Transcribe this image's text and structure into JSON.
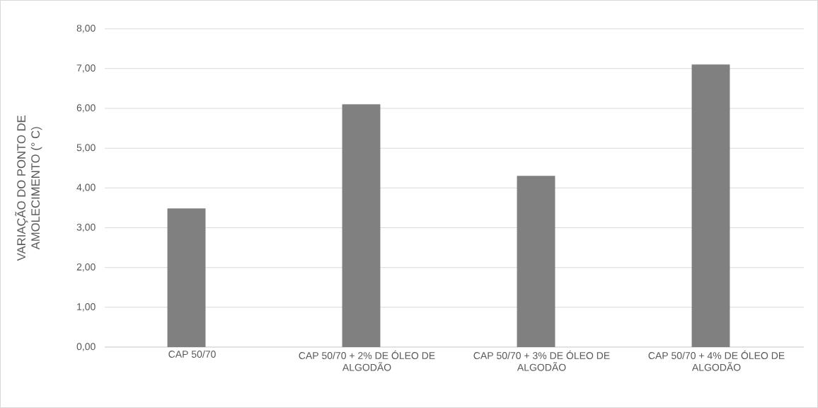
{
  "chart_data": {
    "type": "bar",
    "ylabel": "VARIAÇÃO DO PONTO DE AMOLECIMENTO (° C)",
    "categories": [
      "CAP 50/70",
      "CAP 50/70 + 2% DE ÓLEO DE ALGODÃO",
      "CAP 50/70 + 3% DE ÓLEO DE ALGODÃO",
      "CAP 50/70 + 4% DE ÓLEO DE ALGODÃO"
    ],
    "values": [
      3.48,
      6.1,
      4.3,
      7.1
    ],
    "color": "#808080",
    "ylim": [
      0,
      8
    ],
    "yticks": [
      {
        "value": 0,
        "label": "0,00"
      },
      {
        "value": 1,
        "label": "1,00"
      },
      {
        "value": 2,
        "label": "2,00"
      },
      {
        "value": 3,
        "label": "3,00"
      },
      {
        "value": 4,
        "label": "4,00"
      },
      {
        "value": 5,
        "label": "5,00"
      },
      {
        "value": 6,
        "label": "6,00"
      },
      {
        "value": 7,
        "label": "7,00"
      },
      {
        "value": 8,
        "label": "8,00"
      }
    ],
    "grid": "y"
  }
}
